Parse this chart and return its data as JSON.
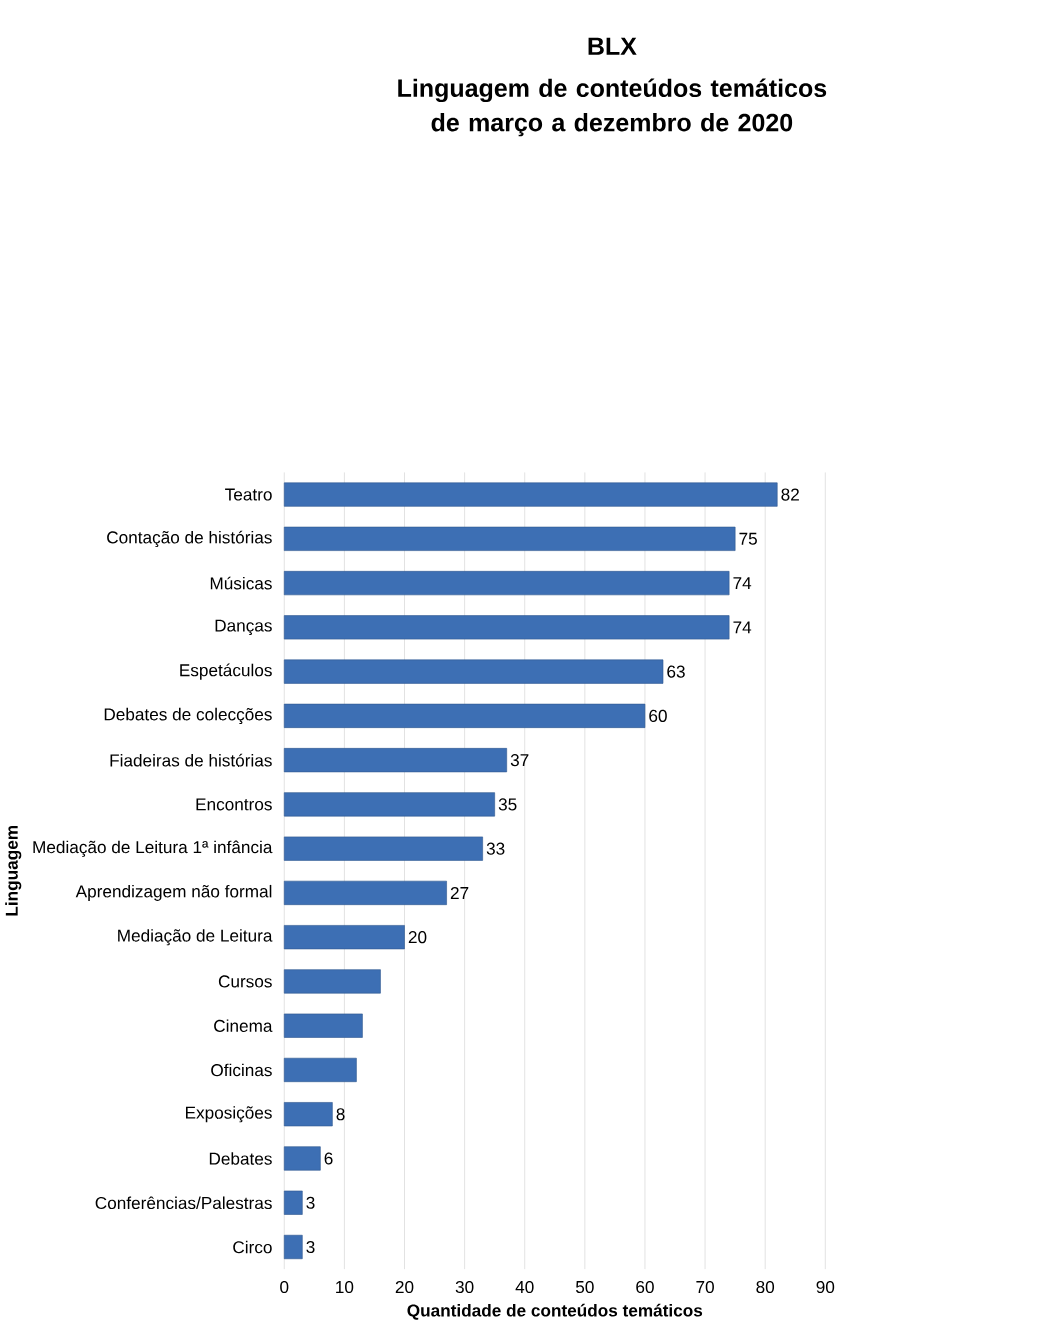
{
  "chart_data": {
    "type": "bar",
    "orientation": "horizontal",
    "title": "BLX",
    "subtitle": "Linguagem de conteúdos temáticos de março a dezembro de 2020",
    "xlabel": "Quantidade de conteúdos temáticos",
    "ylabel": "Linguagem",
    "categories": [
      "Teatro",
      "Contação de histórias",
      "Músicas",
      "Danças",
      "Espetáculos",
      "Debates de colecções",
      "Fiadeiras de histórias",
      "Encontros",
      "Mediação de Leitura 1ª infância",
      "Aprendizagem não formal",
      "Mediação de Leitura",
      "Cursos",
      "Cinema",
      "Oficinas",
      "Exposições",
      "Debates",
      "Conferências/Palestras",
      "Circo"
    ],
    "values": [
      82,
      75,
      74,
      74,
      63,
      60,
      37,
      35,
      33,
      27,
      20,
      16,
      13,
      12,
      8,
      6,
      3,
      3
    ],
    "value_labels": [
      "82",
      "75",
      "74",
      "74",
      "63",
      "60",
      "37",
      "35",
      "33",
      "27",
      "20",
      null,
      null,
      null,
      "8",
      "6",
      "3",
      "3"
    ],
    "color": "#3d6fb4",
    "xlim": [
      0,
      90
    ],
    "xticks": [
      0,
      10,
      20,
      30,
      40,
      50,
      60,
      70,
      80,
      90
    ],
    "grid": "x"
  }
}
